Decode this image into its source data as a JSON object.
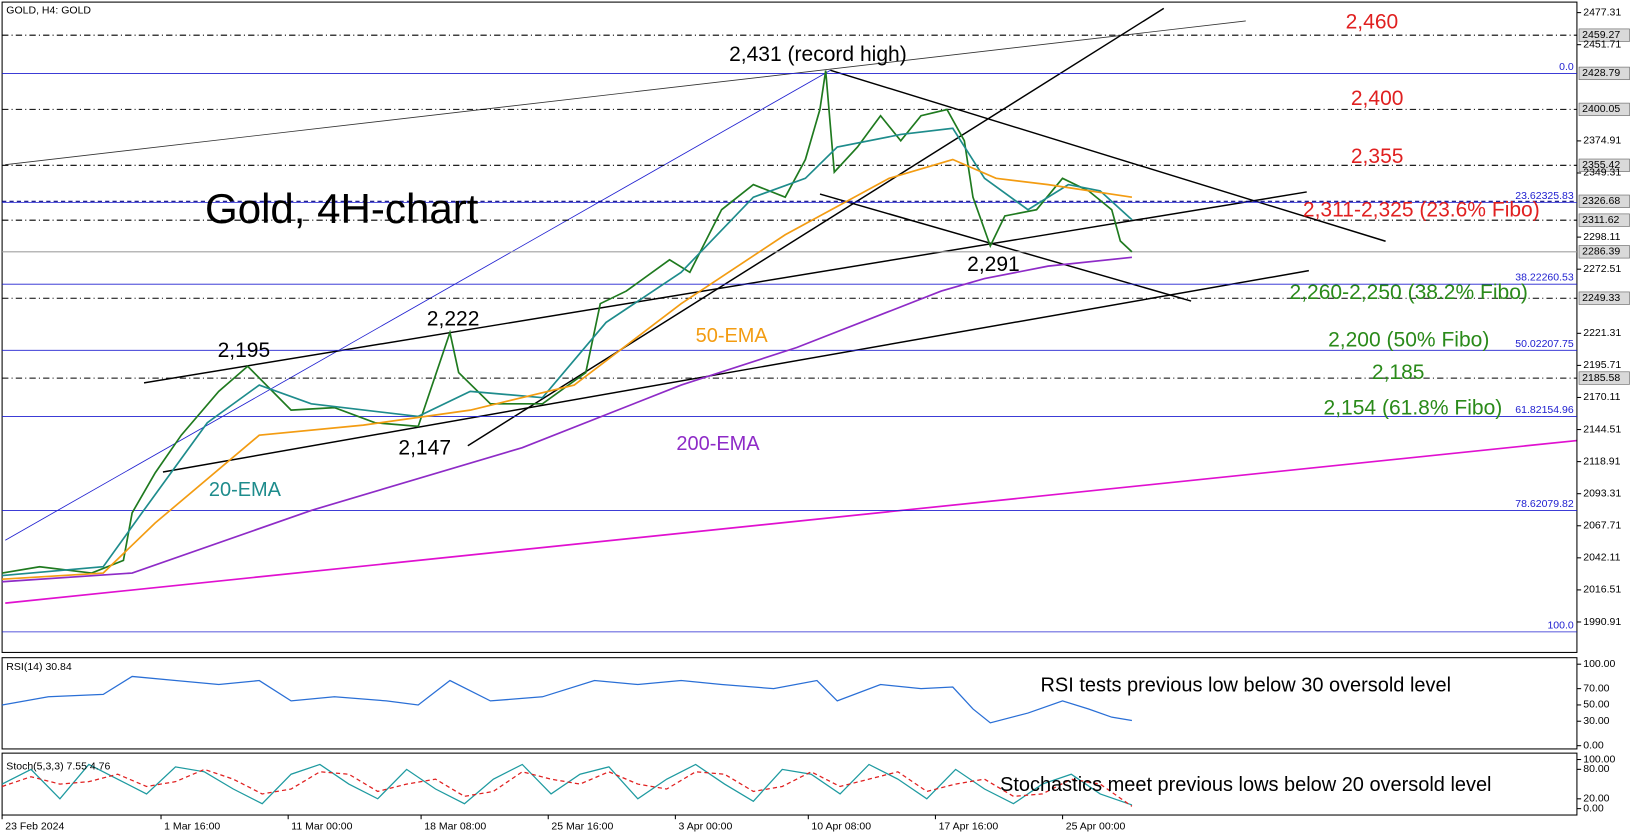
{
  "chart_data": [
    {
      "type": "line",
      "title": "GOLD, H4:  GOLD",
      "subtitle": "Gold, 4H-chart",
      "xlim": [
        0,
        545
      ],
      "ylim": [
        1966.6,
        2485.7
      ],
      "yticks": [
        2477.31,
        2451.71,
        2374.91,
        2349.31,
        2298.11,
        2272.51,
        2221.31,
        2195.71,
        2170.11,
        2144.51,
        2118.91,
        2093.31,
        2067.71,
        2042.11,
        2016.51,
        1990.91
      ],
      "series": [
        {
          "color": "#1f7a1f",
          "x": [
            0,
            13,
            31,
            42,
            45,
            53,
            62,
            75,
            85,
            100,
            115,
            129,
            144,
            155,
            158,
            169,
            187,
            202,
            207,
            216,
            231,
            238,
            249,
            260,
            271,
            278,
            283,
            285,
            288,
            296,
            304,
            311,
            318,
            327,
            333,
            336,
            342,
            347,
            358,
            367,
            376,
            384,
            387,
            391
          ],
          "values": [
            2030,
            2035,
            2030,
            2040,
            2078,
            2110,
            2140,
            2175,
            2195,
            2160,
            2162,
            2150,
            2147,
            2222,
            2190,
            2165,
            2165,
            2190,
            2245,
            2255,
            2280,
            2270,
            2320,
            2340,
            2330,
            2360,
            2400,
            2431,
            2350,
            2370,
            2395,
            2375,
            2395,
            2400,
            2375,
            2330,
            2291,
            2315,
            2320,
            2345,
            2335,
            2320,
            2295,
            2286.39
          ]
        },
        {
          "name": "20-EMA",
          "color": "#1e8c8c",
          "x": [
            0,
            35,
            49,
            71,
            89,
            107,
            144,
            162,
            187,
            209,
            235,
            260,
            278,
            289,
            311,
            329,
            340,
            355,
            369,
            380,
            391
          ],
          "values": [
            2028,
            2035,
            2080,
            2150,
            2180,
            2165,
            2155,
            2175,
            2170,
            2230,
            2270,
            2330,
            2345,
            2370,
            2380,
            2385,
            2345,
            2320,
            2340,
            2335,
            2312
          ]
        },
        {
          "name": "50-EMA",
          "color": "#f39c12",
          "x": [
            0,
            35,
            53,
            89,
            125,
            162,
            198,
            235,
            271,
            307,
            329,
            344,
            362,
            391
          ],
          "values": [
            2025,
            2030,
            2070,
            2140,
            2148,
            2160,
            2180,
            2245,
            2300,
            2345,
            2360,
            2345,
            2340,
            2330
          ]
        },
        {
          "name": "200-EMA",
          "color": "#8e2bc7",
          "x": [
            0,
            45,
            107,
            180,
            235,
            275,
            325,
            340,
            362,
            391
          ],
          "values": [
            2023,
            2030,
            2080,
            2130,
            2180,
            2210,
            2255,
            2265,
            2275,
            2282
          ]
        }
      ],
      "levels": [
        {
          "value": 2459.27,
          "style": "dashdot",
          "color": "#000000"
        },
        {
          "value": 2428.79,
          "style": "none",
          "color": "#000000"
        },
        {
          "value": 2400.05,
          "style": "dashdot",
          "color": "#000000"
        },
        {
          "value": 2355.42,
          "style": "dashdot",
          "color": "#000000"
        },
        {
          "value": 2326.68,
          "style": "dashed",
          "color": "#000080"
        },
        {
          "value": 2311.62,
          "style": "dashdot",
          "color": "#000000"
        },
        {
          "value": 2286.39,
          "style": "solid",
          "color": "#a0a0a0"
        },
        {
          "value": 2249.33,
          "style": "dashdot",
          "color": "#000000"
        },
        {
          "value": 2185.58,
          "style": "dashdot",
          "color": "#000000"
        }
      ],
      "fibo": {
        "color": "#2020d0",
        "levels": [
          {
            "value": 2428.79,
            "label": "0.0"
          },
          {
            "value": 2325.83,
            "label": "23.62325.83"
          },
          {
            "value": 2260.53,
            "label": "38.22260.53"
          },
          {
            "value": 2207.75,
            "label": "50.02207.75"
          },
          {
            "value": 2154.96,
            "label": "61.82154.96"
          },
          {
            "value": 2079.82,
            "label": "78.62079.82"
          },
          {
            "value": 1983,
            "label": "100.0"
          }
        ]
      },
      "annotations": [
        {
          "text": "2,431 (record high)",
          "color": "#000000"
        },
        {
          "text": "2,195",
          "color": "#000000"
        },
        {
          "text": "2,222",
          "color": "#000000"
        },
        {
          "text": "2,147",
          "color": "#000000"
        },
        {
          "text": "2,291",
          "color": "#000000"
        },
        {
          "text": "2,460",
          "color": "#e02020"
        },
        {
          "text": "2,400",
          "color": "#e02020"
        },
        {
          "text": "2,355",
          "color": "#e02020"
        },
        {
          "text": "2,311-2,325 (23.6% Fibo)",
          "color": "#e02020"
        },
        {
          "text": "2,260-2,250 (38.2% Fibo)",
          "color": "#2a8a1a"
        },
        {
          "text": "2,200 (50% Fibo)",
          "color": "#2a8a1a"
        },
        {
          "text": "2,185",
          "color": "#2a8a1a"
        },
        {
          "text": "2,154 (61.8% Fibo)",
          "color": "#2a8a1a"
        }
      ]
    },
    {
      "type": "line",
      "title": "RSI(14) 30.84",
      "note": "RSI tests previous low below 30 oversold level",
      "xlim": [
        0,
        545
      ],
      "ylim": [
        -4,
        108
      ],
      "yticks": [
        {
          "value": 100,
          "label": "100.00"
        },
        {
          "value": 70,
          "label": "70.00"
        },
        {
          "value": 50,
          "label": "50.00"
        },
        {
          "value": 30,
          "label": "30.00"
        },
        {
          "value": 0,
          "label": "0.00"
        }
      ],
      "series": [
        {
          "color": "#2a6fd6",
          "x": [
            0,
            16,
            35,
            45,
            60,
            75,
            89,
            100,
            115,
            133,
            144,
            155,
            169,
            187,
            205,
            220,
            235,
            249,
            267,
            282,
            289,
            304,
            318,
            329,
            336,
            342,
            355,
            367,
            376,
            384,
            391
          ],
          "values": [
            50,
            60,
            63,
            85,
            80,
            75,
            80,
            55,
            60,
            55,
            50,
            80,
            55,
            60,
            80,
            75,
            80,
            75,
            70,
            80,
            55,
            75,
            70,
            72,
            45,
            28,
            40,
            55,
            45,
            35,
            30.84
          ]
        }
      ]
    },
    {
      "type": "line",
      "title": "Stoch(5,3,3) 7.55 4.76",
      "note": "Stochastics meet previous lows below 20 oversold level",
      "xlim": [
        0,
        545
      ],
      "ylim": [
        -13,
        113
      ],
      "yticks": [
        {
          "value": 100,
          "label": "100.00"
        },
        {
          "value": 80,
          "label": "80.00"
        },
        {
          "value": 20,
          "label": "20.00"
        },
        {
          "value": 0,
          "label": "0.00"
        }
      ],
      "xticks": [
        {
          "value": 0,
          "label": "23 Feb 2024"
        },
        {
          "value": 55,
          "label": "1 Mar 16:00"
        },
        {
          "value": 99,
          "label": "11 Mar 00:00"
        },
        {
          "value": 145,
          "label": "18 Mar 08:00"
        },
        {
          "value": 189,
          "label": "25 Mar 16:00"
        },
        {
          "value": 233,
          "label": "3 Apr 00:00"
        },
        {
          "value": 279,
          "label": "10 Apr 08:00"
        },
        {
          "value": 323,
          "label": "17 Apr 16:00"
        },
        {
          "value": 367,
          "label": "25 Apr 00:00"
        }
      ],
      "series": [
        {
          "color": "#1e9aa0",
          "style": "solid",
          "x": [
            0,
            10,
            20,
            30,
            40,
            50,
            60,
            70,
            80,
            90,
            100,
            110,
            120,
            130,
            140,
            150,
            160,
            170,
            180,
            190,
            200,
            210,
            220,
            230,
            240,
            250,
            260,
            270,
            280,
            290,
            300,
            310,
            320,
            330,
            340,
            350,
            360,
            370,
            380,
            391
          ],
          "values": [
            50,
            80,
            20,
            90,
            60,
            30,
            85,
            75,
            40,
            10,
            70,
            90,
            50,
            20,
            80,
            40,
            10,
            60,
            90,
            30,
            70,
            85,
            20,
            60,
            90,
            50,
            15,
            80,
            70,
            30,
            90,
            60,
            20,
            80,
            40,
            10,
            50,
            70,
            30,
            7.55
          ]
        },
        {
          "color": "#e02020",
          "style": "dashed",
          "x": [
            0,
            10,
            20,
            30,
            40,
            50,
            60,
            70,
            80,
            90,
            100,
            110,
            120,
            130,
            140,
            150,
            160,
            170,
            180,
            190,
            200,
            210,
            220,
            230,
            240,
            250,
            260,
            270,
            280,
            290,
            300,
            310,
            320,
            330,
            340,
            350,
            360,
            370,
            380,
            391
          ],
          "values": [
            45,
            65,
            50,
            55,
            70,
            45,
            55,
            80,
            60,
            30,
            40,
            75,
            70,
            35,
            50,
            60,
            25,
            35,
            75,
            60,
            50,
            75,
            50,
            40,
            75,
            70,
            35,
            45,
            75,
            45,
            60,
            75,
            35,
            50,
            60,
            25,
            30,
            60,
            50,
            4.76
          ]
        }
      ]
    }
  ]
}
